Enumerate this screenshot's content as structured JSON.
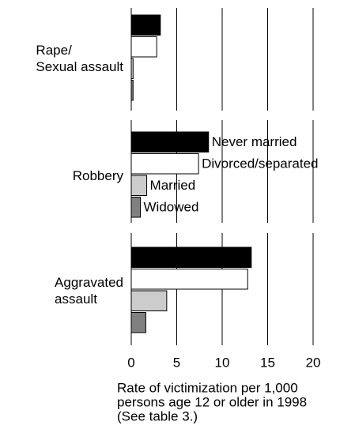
{
  "chart_data": {
    "type": "bar",
    "orientation": "horizontal",
    "categories": [
      "Rape/\nSexual assault",
      "Robbery",
      "Aggravated\nassault"
    ],
    "series": [
      {
        "name": "Never married",
        "color": "#000000",
        "values": [
          3.2,
          8.5,
          13.2
        ]
      },
      {
        "name": "Divorced/separated",
        "color": "#ffffff",
        "values": [
          2.8,
          7.4,
          12.8
        ]
      },
      {
        "name": "Married",
        "color": "#cccccc",
        "values": [
          0.2,
          1.7,
          3.9
        ]
      },
      {
        "name": "Widowed",
        "color": "#808080",
        "values": [
          0.2,
          1.0,
          1.6
        ]
      }
    ],
    "xlim": [
      0,
      20
    ],
    "xticks": [
      0,
      5,
      10,
      15,
      20
    ],
    "grid": true,
    "xlabel": [
      "Rate of victimization per 1,000",
      "persons age 12 or older in 1998",
      "(See table 3.)"
    ]
  }
}
